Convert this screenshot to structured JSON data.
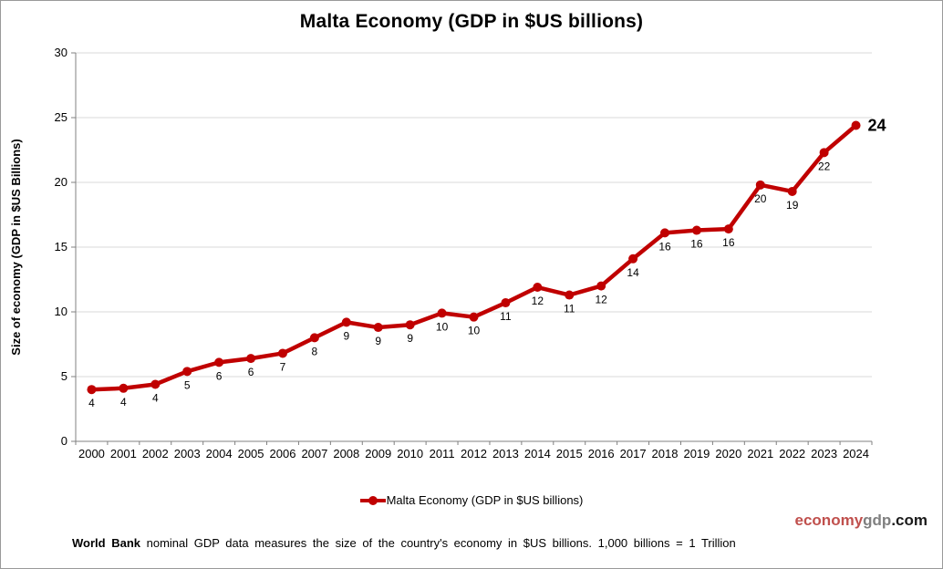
{
  "chart": {
    "title": "Malta Economy (GDP in $US billions)",
    "y_axis_title": "Size of economy (GDP in $US Billions)",
    "legend_label": "Malta Economy (GDP in $US billions)",
    "line_color": "#C00000",
    "gridline_color": "#D9D9D9",
    "axis_color": "#808080"
  },
  "chart_data": {
    "type": "line",
    "title": "Malta Economy (GDP in $US billions)",
    "xlabel": "",
    "ylabel": "Size of economy (GDP in $US Billions)",
    "categories": [
      "2000",
      "2001",
      "2002",
      "2003",
      "2004",
      "2005",
      "2006",
      "2007",
      "2008",
      "2009",
      "2010",
      "2011",
      "2012",
      "2013",
      "2014",
      "2015",
      "2016",
      "2017",
      "2018",
      "2019",
      "2020",
      "2021",
      "2022",
      "2023",
      "2024"
    ],
    "series": [
      {
        "name": "Malta Economy (GDP in $US billions)",
        "color": "#C00000",
        "values": [
          4.0,
          4.1,
          4.4,
          5.4,
          6.1,
          6.4,
          6.8,
          8.0,
          9.2,
          8.8,
          9.0,
          9.9,
          9.6,
          10.7,
          11.9,
          11.3,
          12.0,
          14.1,
          16.1,
          16.3,
          16.4,
          19.8,
          19.3,
          22.3,
          24.4
        ],
        "point_labels": [
          "4",
          "4",
          "4",
          "5",
          "6",
          "6",
          "7",
          "8",
          "9",
          "9",
          "9",
          "10",
          "10",
          "11",
          "12",
          "11",
          "12",
          "14",
          "16",
          "16",
          "16",
          "20",
          "19",
          "22",
          "24"
        ]
      }
    ],
    "ylim": [
      0,
      30
    ],
    "yticks": [
      0,
      5,
      10,
      15,
      20,
      25,
      30
    ],
    "grid": true,
    "legend_position": "bottom",
    "emphasize_last_label": true
  },
  "footer": {
    "bold": "World Bank",
    "text": " nominal GDP data  measures the size of the country's economy in $US billions. 1,000 billions = 1 Trillion"
  },
  "watermark": {
    "part1": "economy",
    "part2": "gdp",
    "part3": ".com",
    "color1": "#C0504D",
    "color2": "#808080",
    "color3": "#1A1A1A"
  }
}
